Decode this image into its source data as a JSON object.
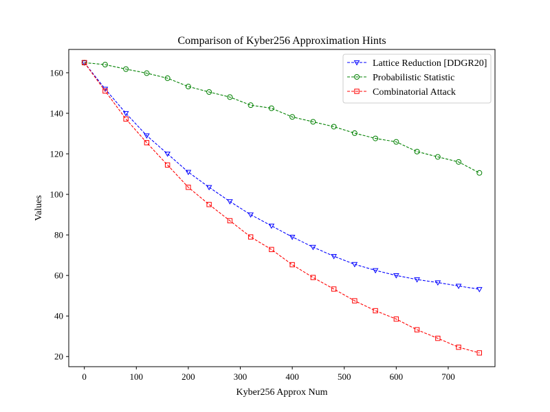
{
  "chart_data": {
    "type": "line",
    "title": "Comparison of Kyber256 Approximation Hints",
    "xlabel": "Kyber256 Approx Num",
    "ylabel": "Values",
    "xlim": [
      -30,
      790
    ],
    "ylim": [
      15,
      171.5
    ],
    "xticks": [
      0,
      100,
      200,
      300,
      400,
      500,
      600,
      700
    ],
    "yticks": [
      20,
      40,
      60,
      80,
      100,
      120,
      140,
      160
    ],
    "grid": false,
    "legend_position": "top-right",
    "x": [
      0,
      40,
      80,
      120,
      160,
      200,
      240,
      280,
      320,
      360,
      400,
      440,
      480,
      520,
      560,
      600,
      640,
      680,
      720,
      760
    ],
    "series": [
      {
        "name": "Lattice Reduction [DDGR20]",
        "color": "#0000ff",
        "marker": "triangle-down",
        "values": [
          165,
          152,
          140,
          129,
          120,
          111,
          103.5,
          96.5,
          90,
          84.5,
          79,
          74,
          69.5,
          65.5,
          62.5,
          60,
          58,
          56.5,
          54.8,
          53.2
        ]
      },
      {
        "name": "Probabilistic Statistic",
        "color": "#008000",
        "marker": "circle",
        "values": [
          165,
          164,
          161.8,
          159.8,
          157.3,
          153.2,
          150.5,
          148,
          144,
          142.5,
          138.2,
          135.8,
          133.4,
          130.2,
          127.6,
          125.9,
          121.1,
          118.5,
          116,
          110.6
        ]
      },
      {
        "name": "Combinatorial Attack",
        "color": "#ff0000",
        "marker": "square",
        "values": [
          165,
          151,
          137.2,
          125.5,
          114.5,
          103.5,
          95,
          87,
          79,
          72.8,
          65.3,
          59,
          53.3,
          47.5,
          42.6,
          38.5,
          33.2,
          29,
          24.6,
          21.8
        ]
      }
    ]
  }
}
